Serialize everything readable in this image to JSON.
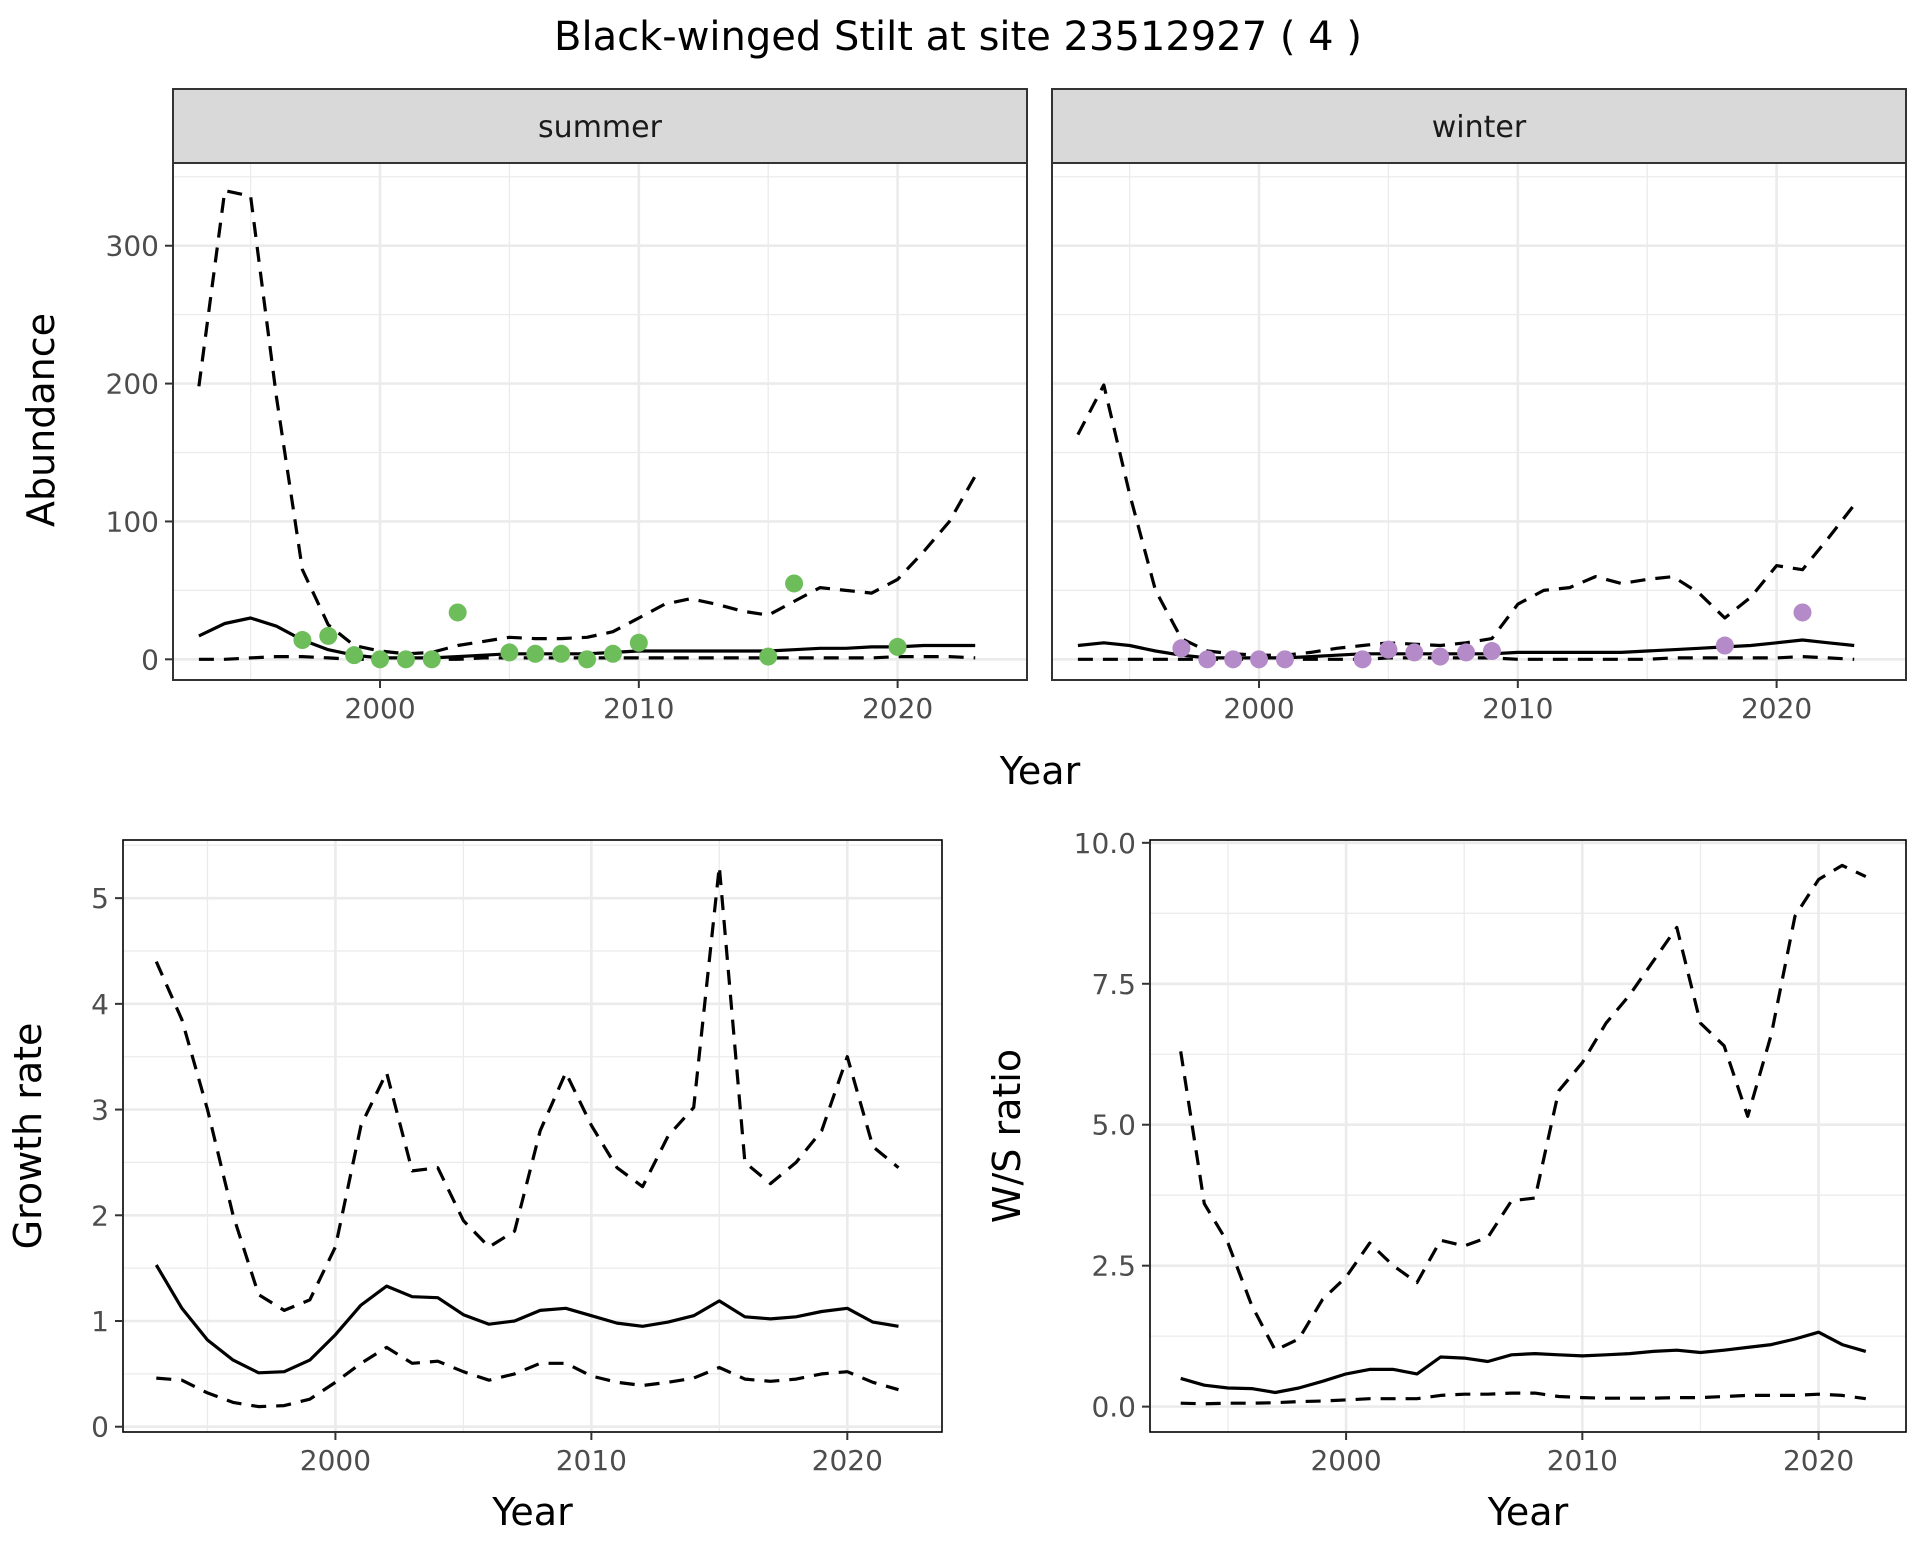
{
  "figure": {
    "title": "Black-winged Stilt at site 23512927 ( 4 )"
  },
  "chart_data": [
    {
      "type": "line",
      "panel": "summer",
      "facet_label": "summer",
      "xlabel": "Year",
      "ylabel": "Abundance",
      "xlim": [
        1992,
        2025
      ],
      "ylim": [
        -15,
        360
      ],
      "x_ticks": [
        2000,
        2010,
        2020
      ],
      "y_ticks": [
        0,
        100,
        200,
        300
      ],
      "point_color": "#6dbd5b",
      "x": [
        1993,
        1994,
        1995,
        1996,
        1997,
        1998,
        1999,
        2000,
        2001,
        2002,
        2003,
        2004,
        2005,
        2006,
        2007,
        2008,
        2009,
        2010,
        2011,
        2012,
        2013,
        2014,
        2015,
        2016,
        2017,
        2018,
        2019,
        2020,
        2021,
        2022,
        2023
      ],
      "series": [
        {
          "style": "solid",
          "values": [
            17,
            26,
            30,
            24,
            14,
            7,
            3,
            1,
            1,
            1,
            2,
            3,
            4,
            4,
            4,
            4,
            5,
            6,
            6,
            6,
            6,
            6,
            6,
            7,
            8,
            8,
            9,
            9,
            10,
            10,
            10
          ]
        },
        {
          "style": "dashed",
          "values": [
            198,
            340,
            336,
            190,
            65,
            25,
            10,
            6,
            4,
            5,
            10,
            13,
            16,
            15,
            15,
            16,
            20,
            30,
            40,
            44,
            40,
            35,
            32,
            42,
            52,
            50,
            48,
            58,
            78,
            100,
            133
          ]
        },
        {
          "style": "dashed",
          "values": [
            0,
            0,
            1,
            2,
            2,
            1,
            0,
            0,
            0,
            0,
            0,
            1,
            1,
            1,
            1,
            1,
            1,
            1,
            1,
            1,
            1,
            1,
            1,
            1,
            1,
            1,
            1,
            2,
            2,
            2,
            1
          ]
        }
      ],
      "points": [
        {
          "x": 1997,
          "y": 14
        },
        {
          "x": 1998,
          "y": 17
        },
        {
          "x": 1999,
          "y": 3
        },
        {
          "x": 2000,
          "y": 0
        },
        {
          "x": 2001,
          "y": 0
        },
        {
          "x": 2002,
          "y": 0
        },
        {
          "x": 2003,
          "y": 34
        },
        {
          "x": 2005,
          "y": 5
        },
        {
          "x": 2006,
          "y": 4
        },
        {
          "x": 2007,
          "y": 4
        },
        {
          "x": 2008,
          "y": 0
        },
        {
          "x": 2009,
          "y": 4
        },
        {
          "x": 2010,
          "y": 12
        },
        {
          "x": 2015,
          "y": 2
        },
        {
          "x": 2016,
          "y": 55
        },
        {
          "x": 2020,
          "y": 9
        }
      ]
    },
    {
      "type": "line",
      "panel": "winter",
      "facet_label": "winter",
      "xlabel": "Year",
      "ylabel": "Abundance",
      "xlim": [
        1992,
        2025
      ],
      "ylim": [
        -15,
        360
      ],
      "x_ticks": [
        2000,
        2010,
        2020
      ],
      "y_ticks": [
        0,
        100,
        200,
        300
      ],
      "point_color": "#b48ac8",
      "x": [
        1993,
        1994,
        1995,
        1996,
        1997,
        1998,
        1999,
        2000,
        2001,
        2002,
        2003,
        2004,
        2005,
        2006,
        2007,
        2008,
        2009,
        2010,
        2011,
        2012,
        2013,
        2014,
        2015,
        2016,
        2017,
        2018,
        2019,
        2020,
        2021,
        2022,
        2023
      ],
      "series": [
        {
          "style": "solid",
          "values": [
            10,
            12,
            10,
            6,
            3,
            1,
            1,
            1,
            1,
            2,
            3,
            4,
            4,
            4,
            4,
            4,
            4,
            5,
            5,
            5,
            5,
            5,
            6,
            7,
            8,
            9,
            10,
            12,
            14,
            12,
            10
          ]
        },
        {
          "style": "dashed",
          "values": [
            163,
            199,
            120,
            50,
            15,
            6,
            4,
            3,
            3,
            5,
            8,
            10,
            12,
            11,
            10,
            12,
            15,
            40,
            50,
            52,
            60,
            55,
            58,
            60,
            48,
            30,
            45,
            68,
            65,
            88,
            112
          ]
        },
        {
          "style": "dashed",
          "values": [
            0,
            0,
            0,
            0,
            0,
            0,
            0,
            0,
            0,
            0,
            0,
            0,
            1,
            1,
            1,
            1,
            1,
            0,
            0,
            0,
            0,
            0,
            0,
            1,
            1,
            1,
            1,
            1,
            2,
            1,
            0
          ]
        }
      ],
      "points": [
        {
          "x": 1997,
          "y": 8
        },
        {
          "x": 1998,
          "y": 0
        },
        {
          "x": 1999,
          "y": 0
        },
        {
          "x": 2000,
          "y": 0
        },
        {
          "x": 2001,
          "y": 0
        },
        {
          "x": 2004,
          "y": 0
        },
        {
          "x": 2005,
          "y": 7
        },
        {
          "x": 2006,
          "y": 5
        },
        {
          "x": 2007,
          "y": 2
        },
        {
          "x": 2008,
          "y": 5
        },
        {
          "x": 2009,
          "y": 6
        },
        {
          "x": 2018,
          "y": 10
        },
        {
          "x": 2021,
          "y": 34
        }
      ]
    },
    {
      "type": "line",
      "panel": "growth",
      "xlabel": "Year",
      "ylabel": "Growth rate",
      "xlim": [
        1991.7,
        2023.7
      ],
      "ylim": [
        -0.05,
        5.55
      ],
      "x_ticks": [
        2000,
        2010,
        2020
      ],
      "y_ticks": [
        0,
        1,
        2,
        3,
        4,
        5
      ],
      "x": [
        1993,
        1994,
        1995,
        1996,
        1997,
        1998,
        1999,
        2000,
        2001,
        2002,
        2003,
        2004,
        2005,
        2006,
        2007,
        2008,
        2009,
        2010,
        2011,
        2012,
        2013,
        2014,
        2015,
        2016,
        2017,
        2018,
        2019,
        2020,
        2021,
        2022
      ],
      "series": [
        {
          "style": "solid",
          "values": [
            1.53,
            1.12,
            0.82,
            0.63,
            0.51,
            0.52,
            0.63,
            0.87,
            1.15,
            1.33,
            1.23,
            1.22,
            1.06,
            0.97,
            1.0,
            1.1,
            1.12,
            1.05,
            0.98,
            0.95,
            0.99,
            1.05,
            1.19,
            1.04,
            1.02,
            1.04,
            1.09,
            1.12,
            0.99,
            0.95
          ]
        },
        {
          "style": "dashed",
          "values": [
            4.4,
            3.85,
            3.0,
            2.0,
            1.25,
            1.1,
            1.2,
            1.7,
            2.85,
            3.35,
            2.42,
            2.45,
            1.95,
            1.7,
            1.85,
            2.8,
            3.35,
            2.85,
            2.45,
            2.27,
            2.75,
            3.02,
            5.3,
            2.5,
            2.3,
            2.5,
            2.8,
            3.5,
            2.65,
            2.45
          ]
        },
        {
          "style": "dashed",
          "values": [
            0.46,
            0.44,
            0.32,
            0.23,
            0.19,
            0.2,
            0.26,
            0.42,
            0.6,
            0.75,
            0.6,
            0.62,
            0.52,
            0.44,
            0.5,
            0.6,
            0.6,
            0.48,
            0.42,
            0.39,
            0.42,
            0.46,
            0.56,
            0.45,
            0.43,
            0.45,
            0.5,
            0.52,
            0.42,
            0.35
          ]
        }
      ]
    },
    {
      "type": "line",
      "panel": "ratio",
      "xlabel": "Year",
      "ylabel": "W/S ratio",
      "xlim": [
        1991.7,
        2023.7
      ],
      "ylim": [
        -0.45,
        10.05
      ],
      "x_ticks": [
        2000,
        2010,
        2020
      ],
      "y_ticks": [
        0.0,
        2.5,
        5.0,
        7.5,
        10.0
      ],
      "y_tick_labels": [
        "0.0",
        "2.5",
        "5.0",
        "7.5",
        "10.0"
      ],
      "x": [
        1993,
        1994,
        1995,
        1996,
        1997,
        1998,
        1999,
        2000,
        2001,
        2002,
        2003,
        2004,
        2005,
        2006,
        2007,
        2008,
        2009,
        2010,
        2011,
        2012,
        2013,
        2014,
        2015,
        2016,
        2017,
        2018,
        2019,
        2020,
        2021,
        2022
      ],
      "series": [
        {
          "style": "solid",
          "values": [
            0.5,
            0.38,
            0.33,
            0.32,
            0.25,
            0.33,
            0.45,
            0.58,
            0.66,
            0.66,
            0.58,
            0.88,
            0.86,
            0.8,
            0.92,
            0.94,
            0.92,
            0.9,
            0.92,
            0.94,
            0.98,
            1.0,
            0.96,
            1.0,
            1.05,
            1.1,
            1.2,
            1.32,
            1.1,
            0.98
          ]
        },
        {
          "style": "dashed",
          "values": [
            6.3,
            3.6,
            2.9,
            1.8,
            1.0,
            1.2,
            1.9,
            2.3,
            2.9,
            2.5,
            2.2,
            2.95,
            2.85,
            3.0,
            3.65,
            3.7,
            5.6,
            6.1,
            6.8,
            7.3,
            7.9,
            8.5,
            6.8,
            6.4,
            5.15,
            6.6,
            8.7,
            9.35,
            9.6,
            9.4
          ]
        },
        {
          "style": "dashed",
          "values": [
            0.06,
            0.05,
            0.06,
            0.06,
            0.07,
            0.09,
            0.1,
            0.12,
            0.14,
            0.14,
            0.14,
            0.2,
            0.22,
            0.22,
            0.24,
            0.24,
            0.18,
            0.16,
            0.15,
            0.15,
            0.15,
            0.16,
            0.16,
            0.18,
            0.2,
            0.2,
            0.2,
            0.22,
            0.2,
            0.14
          ]
        }
      ]
    }
  ]
}
